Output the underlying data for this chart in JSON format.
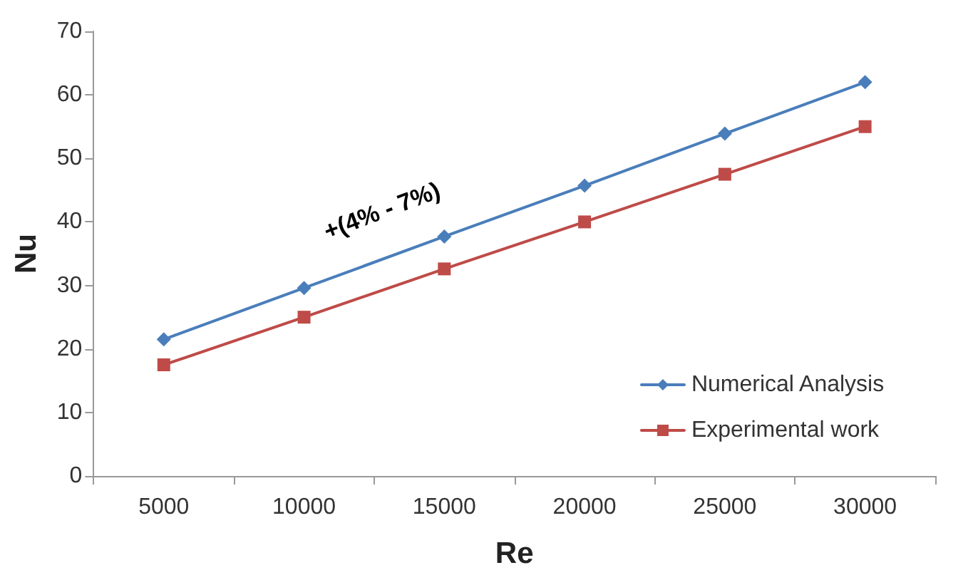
{
  "chart_data": {
    "type": "line",
    "xlabel": "Re",
    "ylabel": "Nu",
    "categories": [
      "5000",
      "10000",
      "15000",
      "20000",
      "25000",
      "30000"
    ],
    "series": [
      {
        "name": "Numerical Analysis",
        "color": "#4a7ebb",
        "marker": "diamond",
        "values": [
          21.5,
          29.6,
          37.7,
          45.7,
          53.9,
          62
        ]
      },
      {
        "name": "Experimental work",
        "color": "#be4b48",
        "marker": "square",
        "values": [
          17.5,
          25,
          32.6,
          40,
          47.5,
          55
        ]
      }
    ],
    "ylim": [
      0,
      70
    ],
    "yticks": [
      0,
      10,
      20,
      30,
      40,
      50,
      60,
      70
    ],
    "grid": false,
    "legend": "bottom right",
    "annotations": [
      "+(4% - 7%)"
    ]
  }
}
